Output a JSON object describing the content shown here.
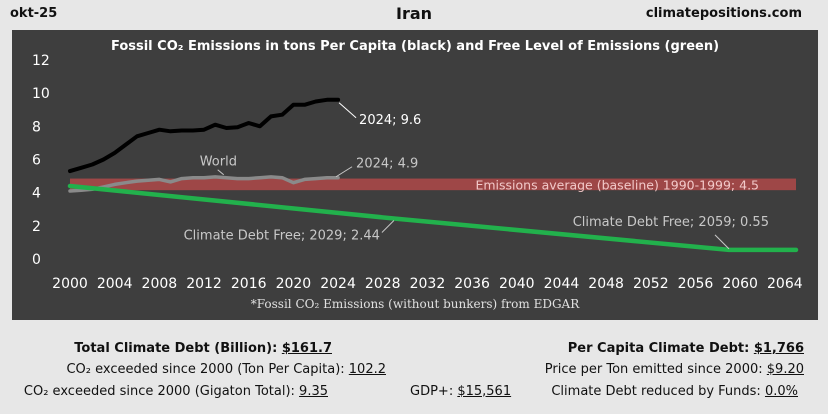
{
  "header": {
    "date": "okt-25",
    "country": "Iran",
    "site": "climatepositions.com"
  },
  "chart_data": {
    "type": "line",
    "title": "Fossil CO₂ Emissions in tons Per Capita (black) and Free Level of Emissions (green)",
    "footnote": "*Fossil CO₂ Emissions (without bunkers) from EDGAR",
    "xlim": [
      2000,
      2065
    ],
    "ylim": [
      0,
      12
    ],
    "x_ticks": [
      2000,
      2004,
      2008,
      2012,
      2016,
      2020,
      2024,
      2028,
      2032,
      2036,
      2040,
      2044,
      2048,
      2052,
      2056,
      2060,
      2064
    ],
    "y_ticks": [
      0,
      2,
      4,
      6,
      8,
      10,
      12
    ],
    "series": [
      {
        "name": "Iran fossil CO₂ per capita",
        "color": "#000000",
        "x": [
          2000,
          2001,
          2002,
          2003,
          2004,
          2005,
          2006,
          2007,
          2008,
          2009,
          2010,
          2011,
          2012,
          2013,
          2014,
          2015,
          2016,
          2017,
          2018,
          2019,
          2020,
          2021,
          2022,
          2023,
          2024
        ],
        "values": [
          5.3,
          5.5,
          5.7,
          6.0,
          6.4,
          6.9,
          7.4,
          7.6,
          7.8,
          7.7,
          7.75,
          7.75,
          7.8,
          8.1,
          7.9,
          7.95,
          8.2,
          8.0,
          8.6,
          8.7,
          9.3,
          9.3,
          9.5,
          9.6,
          9.6
        ]
      },
      {
        "name": "World",
        "color": "#8a8a8a",
        "x": [
          2000,
          2001,
          2002,
          2003,
          2004,
          2005,
          2006,
          2007,
          2008,
          2009,
          2010,
          2011,
          2012,
          2013,
          2014,
          2015,
          2016,
          2017,
          2018,
          2019,
          2020,
          2021,
          2022,
          2023,
          2024
        ],
        "values": [
          4.1,
          4.15,
          4.2,
          4.35,
          4.5,
          4.6,
          4.7,
          4.75,
          4.8,
          4.65,
          4.85,
          4.9,
          4.9,
          4.95,
          4.9,
          4.85,
          4.85,
          4.9,
          4.95,
          4.9,
          4.6,
          4.8,
          4.85,
          4.9,
          4.9
        ]
      },
      {
        "name": "Free level of emissions",
        "color": "#22b14c",
        "x": [
          2000,
          2029,
          2059,
          2065
        ],
        "values": [
          4.4,
          2.44,
          0.55,
          0.55
        ]
      }
    ],
    "baseline": {
      "label": "Emissions average (baseline) 1990-1999; 4.5",
      "value": 4.5,
      "band": [
        4.15,
        4.85
      ]
    },
    "annotations": [
      {
        "text": "2024; 9.6",
        "x": 2024,
        "y": 9.6
      },
      {
        "text": "World",
        "x": 2010,
        "y": 4.9
      },
      {
        "text": "2024; 4.9",
        "x": 2024,
        "y": 4.9
      },
      {
        "text": "Climate Debt Free; 2029; 2.44",
        "x": 2029,
        "y": 2.44
      },
      {
        "text": "Climate Debt Free; 2059; 0.55",
        "x": 2059,
        "y": 0.55
      }
    ]
  },
  "info": {
    "total_debt_label": "Total Climate Debt (Billion):",
    "total_debt_value": "$161.7",
    "exceeded_ton_label": "CO₂ exceeded since 2000 (Ton Per Capita):",
    "exceeded_ton_value": "102.2",
    "exceeded_gt_label": "CO₂ exceeded since 2000 (Gigaton Total):",
    "exceeded_gt_value": "9.35",
    "gdp_label": "GDP+:",
    "gdp_value": "$15,561",
    "per_capita_debt_label": "Per Capita Climate Debt:",
    "per_capita_debt_value": "$1,766",
    "price_label": "Price per Ton emitted since 2000:",
    "price_value": "$9.20",
    "reduced_label": "Climate Debt reduced by Funds:",
    "reduced_value": "0.0%"
  }
}
